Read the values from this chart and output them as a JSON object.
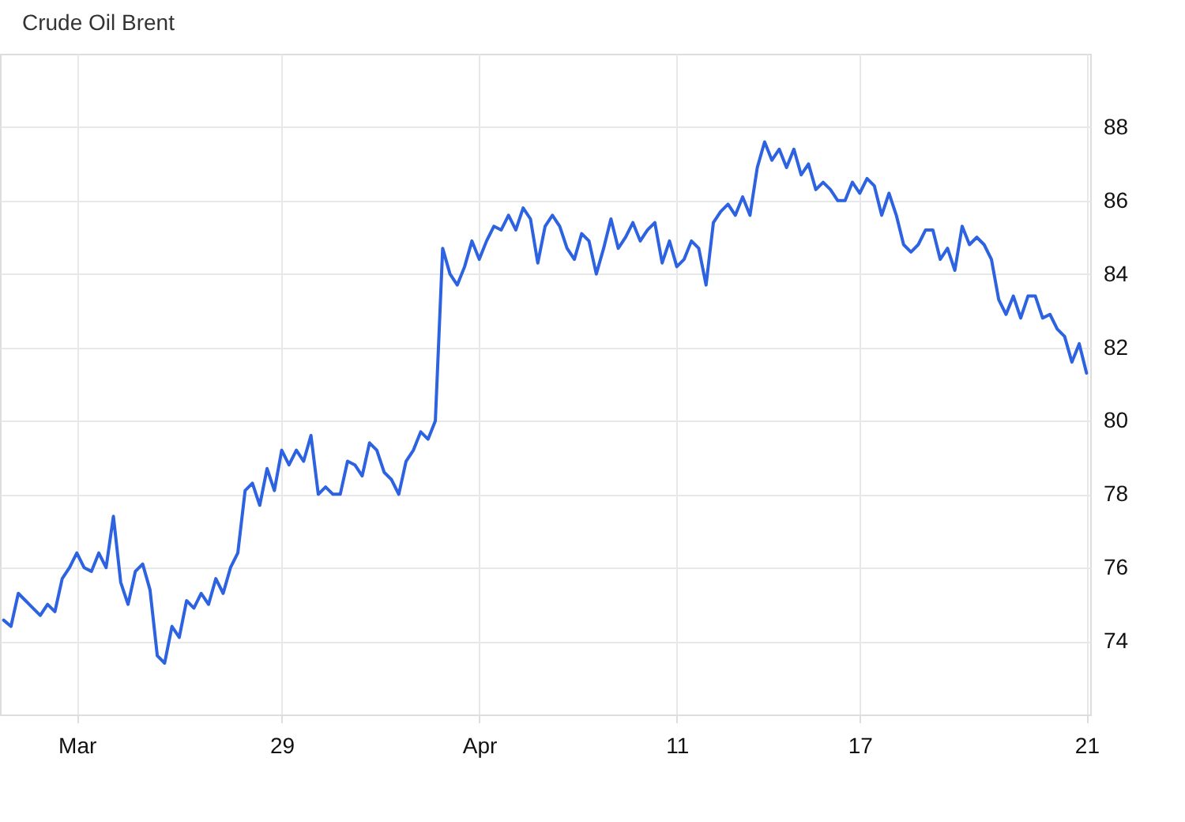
{
  "chart_data": {
    "type": "line",
    "title": "Crude Oil Brent",
    "categories": [
      null,
      null,
      null,
      null,
      null,
      null,
      null,
      null,
      null,
      null,
      "Mar",
      null,
      null,
      null,
      null,
      null,
      null,
      null,
      null,
      null,
      null,
      null,
      null,
      null,
      null,
      null,
      null,
      null,
      null,
      null,
      null,
      null,
      null,
      null,
      null,
      null,
      null,
      null,
      "29",
      null,
      null,
      null,
      null,
      null,
      null,
      null,
      null,
      null,
      null,
      null,
      null,
      null,
      null,
      null,
      null,
      null,
      null,
      null,
      null,
      null,
      null,
      null,
      null,
      null,
      null,
      "Apr",
      null,
      null,
      null,
      null,
      null,
      null,
      null,
      null,
      null,
      null,
      null,
      null,
      null,
      null,
      null,
      null,
      null,
      null,
      null,
      null,
      null,
      null,
      null,
      null,
      null,
      null,
      "11",
      null,
      null,
      null,
      null,
      null,
      null,
      null,
      null,
      null,
      null,
      null,
      null,
      null,
      null,
      null,
      null,
      null,
      null,
      null,
      null,
      null,
      null,
      null,
      null,
      "17",
      null,
      null,
      null,
      null,
      null,
      null,
      null,
      null,
      null,
      null,
      null,
      null,
      null,
      null,
      null,
      null,
      null,
      null,
      null,
      null,
      null,
      null,
      null,
      null,
      null,
      null,
      null,
      null,
      null,
      null,
      "21"
    ],
    "ylim": [
      72,
      90
    ],
    "yticks": [
      74,
      76,
      78,
      80,
      82,
      84,
      86,
      88
    ],
    "grid": true,
    "line_style": "solid",
    "marker": "none",
    "series": [
      {
        "color": "#2d62e0",
        "values": [
          74.57,
          74.4,
          75.3,
          75.1,
          74.9,
          74.7,
          75.0,
          74.8,
          75.7,
          76.0,
          76.4,
          76.0,
          75.9,
          76.4,
          76.0,
          77.4,
          75.6,
          75.0,
          75.9,
          76.1,
          75.4,
          73.6,
          73.4,
          74.4,
          74.1,
          75.1,
          74.9,
          75.3,
          75.0,
          75.7,
          75.3,
          76.0,
          76.4,
          78.1,
          78.3,
          77.7,
          78.7,
          78.1,
          79.2,
          78.8,
          79.2,
          78.9,
          79.6,
          78.0,
          78.2,
          78.0,
          78.0,
          78.9,
          78.8,
          78.5,
          79.4,
          79.2,
          78.6,
          78.4,
          78.0,
          78.9,
          79.2,
          79.7,
          79.5,
          80.0,
          84.7,
          84.0,
          83.7,
          84.2,
          84.9,
          84.4,
          84.9,
          85.3,
          85.2,
          85.6,
          85.2,
          85.8,
          85.5,
          84.3,
          85.3,
          85.6,
          85.3,
          84.7,
          84.4,
          85.1,
          84.9,
          84.0,
          84.7,
          85.5,
          84.7,
          85.0,
          85.4,
          84.9,
          85.2,
          85.4,
          84.3,
          84.9,
          84.2,
          84.4,
          84.9,
          84.7,
          83.7,
          85.4,
          85.7,
          85.9,
          85.6,
          86.1,
          85.6,
          86.9,
          87.6,
          87.1,
          87.4,
          86.9,
          87.4,
          86.7,
          87.0,
          86.3,
          86.5,
          86.3,
          86.0,
          86.0,
          86.5,
          86.2,
          86.6,
          86.4,
          85.6,
          86.2,
          85.6,
          84.8,
          84.6,
          84.8,
          85.2,
          85.2,
          84.4,
          84.7,
          84.1,
          85.3,
          84.8,
          85.0,
          84.8,
          84.4,
          83.3,
          82.9,
          83.4,
          82.8,
          83.4,
          83.4,
          82.8,
          82.9,
          82.5,
          82.3,
          81.6,
          82.1,
          81.3
        ]
      }
    ]
  }
}
